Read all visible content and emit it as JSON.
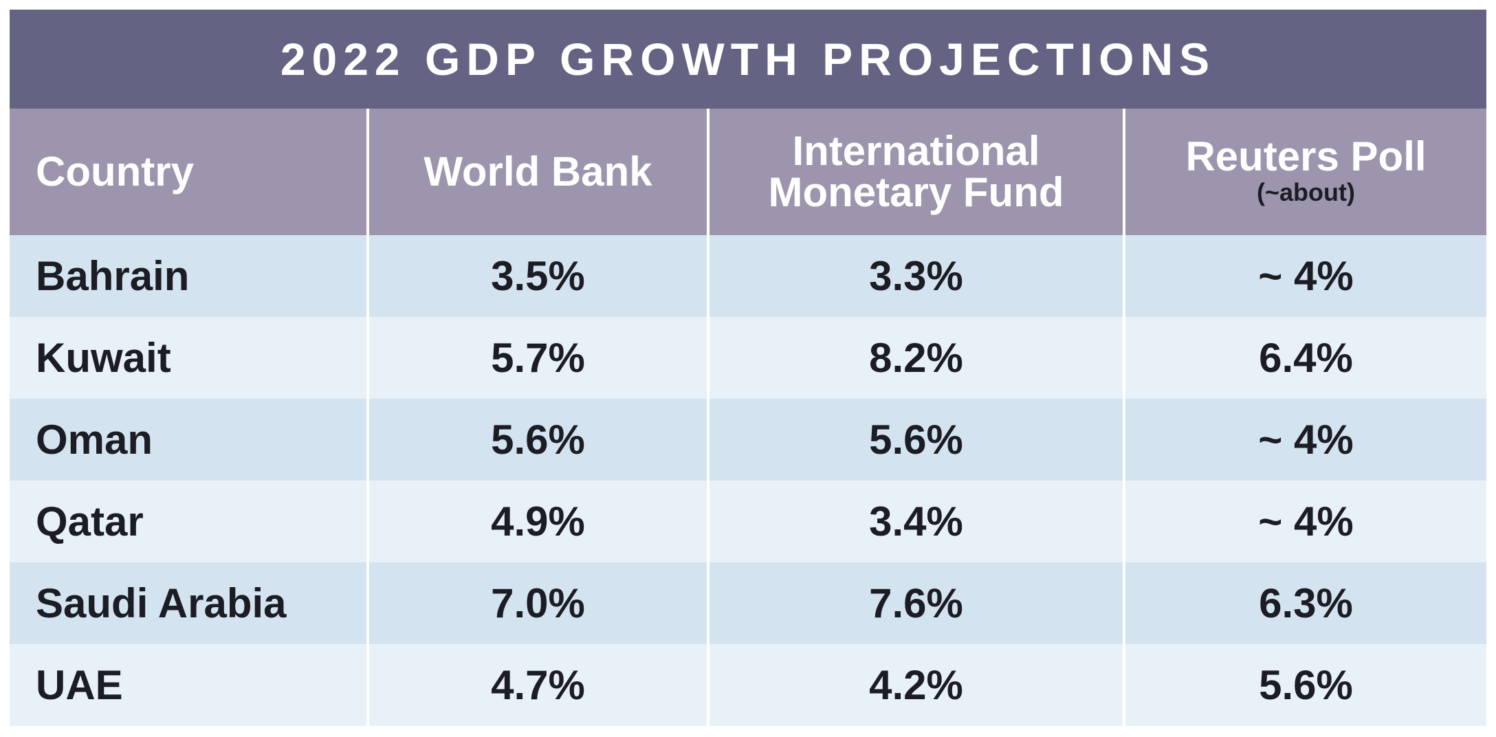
{
  "title": "2022 GDP GROWTH PROJECTIONS",
  "colors": {
    "title_bg": "#656383",
    "header_bg": "#9c95ad",
    "row_dark": "#d3e3ef",
    "row_light": "#e8f1f8",
    "text_dark": "#1c1c24"
  },
  "headers": [
    {
      "label": "Country",
      "sub": ""
    },
    {
      "label": "World Bank",
      "sub": ""
    },
    {
      "label": "International Monetary Fund",
      "line1": "International",
      "line2": "Monetary Fund",
      "sub": ""
    },
    {
      "label": "Reuters Poll",
      "sub": "(~about)"
    }
  ],
  "rows": [
    {
      "country": "Bahrain",
      "world_bank": "3.5%",
      "imf": "3.3%",
      "reuters": "~ 4%"
    },
    {
      "country": "Kuwait",
      "world_bank": "5.7%",
      "imf": "8.2%",
      "reuters": "6.4%"
    },
    {
      "country": "Oman",
      "world_bank": "5.6%",
      "imf": "5.6%",
      "reuters": "~ 4%"
    },
    {
      "country": "Qatar",
      "world_bank": "4.9%",
      "imf": "3.4%",
      "reuters": "~ 4%"
    },
    {
      "country": "Saudi Arabia",
      "world_bank": "7.0%",
      "imf": "7.6%",
      "reuters": "6.3%"
    },
    {
      "country": "UAE",
      "world_bank": "4.7%",
      "imf": "4.2%",
      "reuters": "5.6%"
    }
  ]
}
